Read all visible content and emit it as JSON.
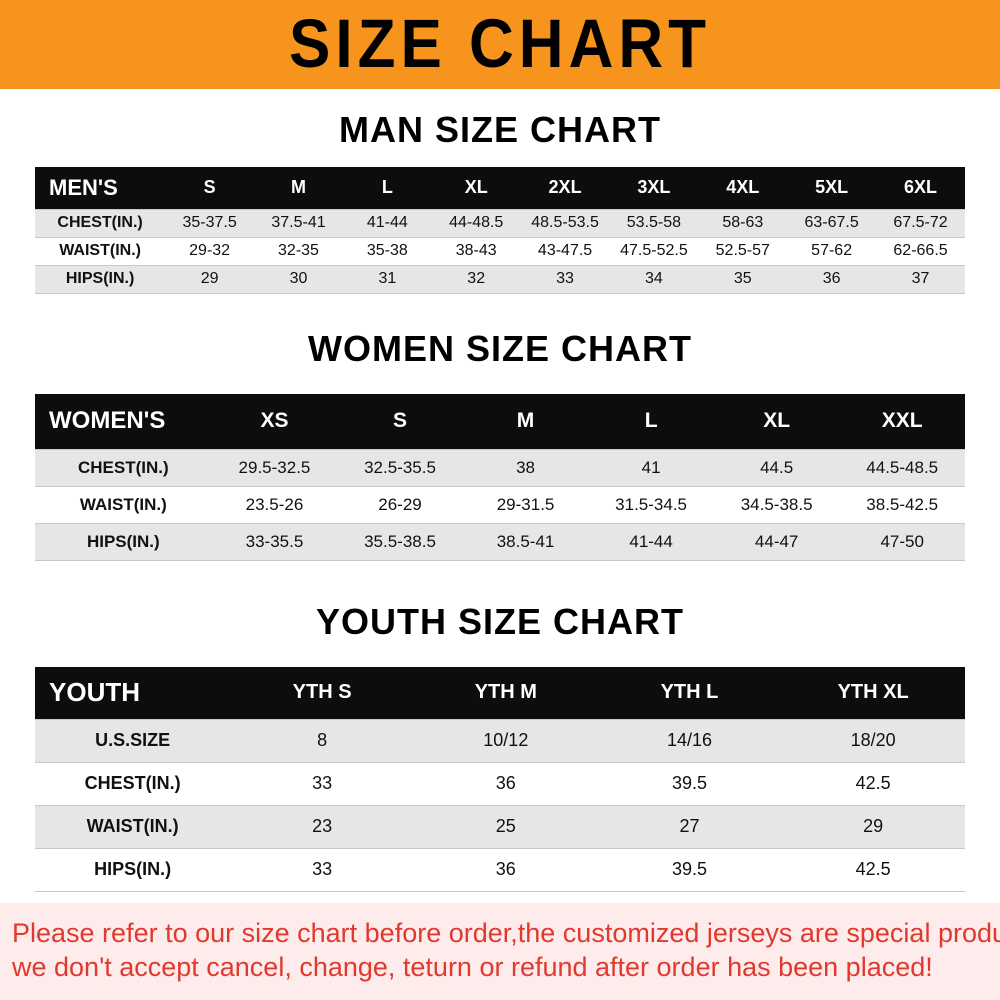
{
  "banner": {
    "title": "SIZE CHART"
  },
  "sections": [
    {
      "heading": "MAN SIZE CHART",
      "table": {
        "title": "MEN'S",
        "columns": [
          "S",
          "M",
          "L",
          "XL",
          "2XL",
          "3XL",
          "4XL",
          "5XL",
          "6XL"
        ],
        "rows": [
          {
            "label": "CHEST(IN.)",
            "values": [
              "35-37.5",
              "37.5-41",
              "41-44",
              "44-48.5",
              "48.5-53.5",
              "53.5-58",
              "58-63",
              "63-67.5",
              "67.5-72"
            ]
          },
          {
            "label": "WAIST(IN.)",
            "values": [
              "29-32",
              "32-35",
              "35-38",
              "38-43",
              "43-47.5",
              "47.5-52.5",
              "52.5-57",
              "57-62",
              "62-66.5"
            ]
          },
          {
            "label": "HIPS(IN.)",
            "values": [
              "29",
              "30",
              "31",
              "32",
              "33",
              "34",
              "35",
              "36",
              "37"
            ]
          }
        ]
      }
    },
    {
      "heading": "WOMEN SIZE CHART",
      "table": {
        "title": "WOMEN'S",
        "columns": [
          "XS",
          "S",
          "M",
          "L",
          "XL",
          "XXL"
        ],
        "rows": [
          {
            "label": "CHEST(IN.)",
            "values": [
              "29.5-32.5",
              "32.5-35.5",
              "38",
              "41",
              "44.5",
              "44.5-48.5"
            ]
          },
          {
            "label": "WAIST(IN.)",
            "values": [
              "23.5-26",
              "26-29",
              "29-31.5",
              "31.5-34.5",
              "34.5-38.5",
              "38.5-42.5"
            ]
          },
          {
            "label": "HIPS(IN.)",
            "values": [
              "33-35.5",
              "35.5-38.5",
              "38.5-41",
              "41-44",
              "44-47",
              "47-50"
            ]
          }
        ]
      }
    },
    {
      "heading": "YOUTH SIZE CHART",
      "table": {
        "title": "YOUTH",
        "columns": [
          "YTH S",
          "YTH M",
          "YTH L",
          "YTH XL"
        ],
        "rows": [
          {
            "label": "U.S.SIZE",
            "values": [
              "8",
              "10/12",
              "14/16",
              "18/20"
            ]
          },
          {
            "label": "CHEST(IN.)",
            "values": [
              "33",
              "36",
              "39.5",
              "42.5"
            ]
          },
          {
            "label": "WAIST(IN.)",
            "values": [
              "23",
              "25",
              "27",
              "29"
            ]
          },
          {
            "label": "HIPS(IN.)",
            "values": [
              "33",
              "36",
              "39.5",
              "42.5"
            ]
          }
        ]
      }
    }
  ],
  "disclaimer": {
    "line1": "Please refer to our size chart before order,the customized jerseys are special products,",
    "line2": "we don't accept cancel, change, teturn or refund after order has been placed!"
  },
  "colors": {
    "banner_bg": "#f7941d",
    "header_bg": "#0d0d0d",
    "shaded_row": "#e6e6e6",
    "disclaimer_bg": "#fdeceb",
    "disclaimer_text": "#e2382d"
  }
}
